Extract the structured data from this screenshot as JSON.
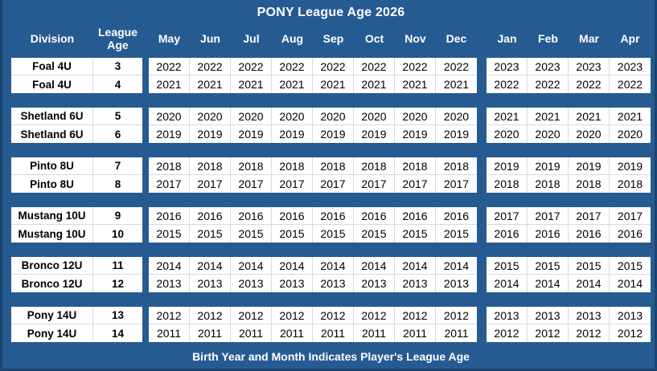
{
  "chart_data": {
    "type": "table",
    "title": "PONY League Age 2026",
    "footer_note": "Birth Year and Month Indicates Player's League Age",
    "header": {
      "division": "Division",
      "league_age": "League\nAge",
      "months": [
        "May",
        "Jun",
        "Jul",
        "Aug",
        "Sep",
        "Oct",
        "Nov",
        "Dec",
        "Jan",
        "Feb",
        "Mar",
        "Apr"
      ]
    },
    "layout": {
      "month_block_split_index": 8,
      "legend": "May-Dec block then Jan-Apr block"
    },
    "colors": {
      "background": "#265B92",
      "frame_edge": "#1B4470",
      "cell_background": "#FFFFFF",
      "gridline": "#D9D9D9",
      "header_text": "#FFFFFF",
      "cell_text": "#000000"
    },
    "groups": [
      {
        "division": "Foal 4U",
        "rows": [
          {
            "division": "Foal 4U",
            "league_age": "3",
            "birth_years": [
              "2022",
              "2022",
              "2022",
              "2022",
              "2022",
              "2022",
              "2022",
              "2022",
              "2023",
              "2023",
              "2023",
              "2023"
            ]
          },
          {
            "division": "Foal 4U",
            "league_age": "4",
            "birth_years": [
              "2021",
              "2021",
              "2021",
              "2021",
              "2021",
              "2021",
              "2021",
              "2021",
              "2022",
              "2022",
              "2022",
              "2022"
            ]
          }
        ]
      },
      {
        "division": "Shetland 6U",
        "rows": [
          {
            "division": "Shetland 6U",
            "league_age": "5",
            "birth_years": [
              "2020",
              "2020",
              "2020",
              "2020",
              "2020",
              "2020",
              "2020",
              "2020",
              "2021",
              "2021",
              "2021",
              "2021"
            ]
          },
          {
            "division": "Shetland 6U",
            "league_age": "6",
            "birth_years": [
              "2019",
              "2019",
              "2019",
              "2019",
              "2019",
              "2019",
              "2019",
              "2019",
              "2020",
              "2020",
              "2020",
              "2020"
            ]
          }
        ]
      },
      {
        "division": "Pinto 8U",
        "rows": [
          {
            "division": "Pinto 8U",
            "league_age": "7",
            "birth_years": [
              "2018",
              "2018",
              "2018",
              "2018",
              "2018",
              "2018",
              "2018",
              "2018",
              "2019",
              "2019",
              "2019",
              "2019"
            ]
          },
          {
            "division": "Pinto 8U",
            "league_age": "8",
            "birth_years": [
              "2017",
              "2017",
              "2017",
              "2017",
              "2017",
              "2017",
              "2017",
              "2017",
              "2018",
              "2018",
              "2018",
              "2018"
            ]
          }
        ]
      },
      {
        "division": "Mustang 10U",
        "rows": [
          {
            "division": "Mustang 10U",
            "league_age": "9",
            "birth_years": [
              "2016",
              "2016",
              "2016",
              "2016",
              "2016",
              "2016",
              "2016",
              "2016",
              "2017",
              "2017",
              "2017",
              "2017"
            ]
          },
          {
            "division": "Mustang 10U",
            "league_age": "10",
            "birth_years": [
              "2015",
              "2015",
              "2015",
              "2015",
              "2015",
              "2015",
              "2015",
              "2015",
              "2016",
              "2016",
              "2016",
              "2016"
            ]
          }
        ]
      },
      {
        "division": "Bronco 12U",
        "rows": [
          {
            "division": "Bronco 12U",
            "league_age": "11",
            "birth_years": [
              "2014",
              "2014",
              "2014",
              "2014",
              "2014",
              "2014",
              "2014",
              "2014",
              "2015",
              "2015",
              "2015",
              "2015"
            ]
          },
          {
            "division": "Bronco 12U",
            "league_age": "12",
            "birth_years": [
              "2013",
              "2013",
              "2013",
              "2013",
              "2013",
              "2013",
              "2013",
              "2013",
              "2014",
              "2014",
              "2014",
              "2014"
            ]
          }
        ]
      },
      {
        "division": "Pony 14U",
        "rows": [
          {
            "division": "Pony 14U",
            "league_age": "13",
            "birth_years": [
              "2012",
              "2012",
              "2012",
              "2012",
              "2012",
              "2012",
              "2012",
              "2012",
              "2013",
              "2013",
              "2013",
              "2013"
            ]
          },
          {
            "division": "Pony 14U",
            "league_age": "14",
            "birth_years": [
              "2011",
              "2011",
              "2011",
              "2011",
              "2011",
              "2011",
              "2011",
              "2011",
              "2012",
              "2012",
              "2012",
              "2012"
            ]
          }
        ]
      }
    ]
  }
}
